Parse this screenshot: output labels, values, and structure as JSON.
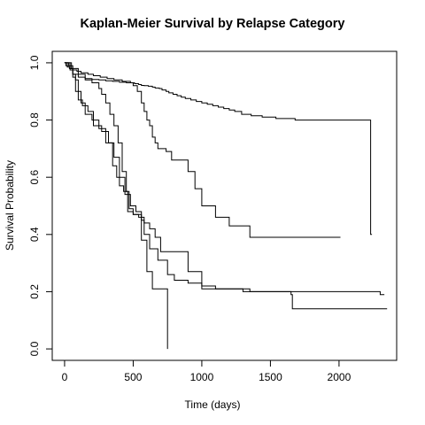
{
  "chart_data": {
    "type": "line",
    "step": true,
    "title": "Kaplan-Meier Survival by Relapse Category",
    "xlabel": "Time (days)",
    "ylabel": "Survival Probability",
    "xlim": [
      -90,
      2420
    ],
    "ylim": [
      -0.04,
      1.04
    ],
    "x_ticks": [
      0,
      500,
      1000,
      1500,
      2000
    ],
    "y_ticks": [
      0.0,
      0.2,
      0.4,
      0.6,
      0.8,
      1.0
    ],
    "x_tick_labels": [
      "0",
      "500",
      "1000",
      "1500",
      "2000"
    ],
    "y_tick_labels": [
      "0.0",
      "0.2",
      "0.4",
      "0.6",
      "0.8",
      "1.0"
    ],
    "grid": false,
    "legend": "none",
    "line_color": "#000000",
    "series": [
      {
        "x": [
          0,
          10,
          20,
          35,
          60,
          90,
          120,
          170,
          210,
          260,
          310,
          360,
          420,
          480,
          510,
          540,
          560,
          580,
          610,
          640,
          660,
          690,
          710,
          740,
          760,
          790,
          820,
          850,
          880,
          920,
          960,
          1000,
          1040,
          1080,
          1120,
          1160,
          1200,
          1240,
          1290,
          1360,
          1440,
          1540,
          1680,
          2230,
          2240
        ],
        "y": [
          1.0,
          0.99,
          0.985,
          0.98,
          0.975,
          0.97,
          0.965,
          0.96,
          0.955,
          0.95,
          0.945,
          0.94,
          0.935,
          0.93,
          0.927,
          0.924,
          0.921,
          0.92,
          0.918,
          0.915,
          0.912,
          0.91,
          0.905,
          0.9,
          0.895,
          0.89,
          0.885,
          0.88,
          0.875,
          0.87,
          0.865,
          0.86,
          0.855,
          0.85,
          0.845,
          0.84,
          0.835,
          0.83,
          0.82,
          0.815,
          0.81,
          0.805,
          0.8,
          0.4,
          0.4
        ]
      },
      {
        "x": [
          0,
          20,
          40,
          60,
          100,
          150,
          200,
          250,
          300,
          350,
          400,
          450,
          500,
          530,
          560,
          580,
          600,
          620,
          640,
          660,
          680,
          700,
          740,
          780,
          840,
          900,
          950,
          1000,
          1100,
          1200,
          1300,
          1350,
          1400,
          2000,
          2010
        ],
        "y": [
          1.0,
          0.99,
          0.975,
          0.96,
          0.95,
          0.945,
          0.942,
          0.94,
          0.937,
          0.935,
          0.932,
          0.93,
          0.92,
          0.9,
          0.86,
          0.83,
          0.8,
          0.78,
          0.74,
          0.72,
          0.7,
          0.7,
          0.69,
          0.66,
          0.66,
          0.62,
          0.56,
          0.5,
          0.46,
          0.43,
          0.43,
          0.39,
          0.39,
          0.39,
          0.39
        ]
      },
      {
        "x": [
          0,
          50,
          100,
          150,
          200,
          250,
          270,
          300,
          330,
          360,
          390,
          420,
          450,
          470,
          500,
          530,
          560,
          600,
          640,
          700,
          740,
          750
        ],
        "y": [
          1.0,
          0.98,
          0.96,
          0.94,
          0.93,
          0.91,
          0.89,
          0.86,
          0.82,
          0.78,
          0.72,
          0.62,
          0.55,
          0.49,
          0.47,
          0.47,
          0.38,
          0.27,
          0.21,
          0.21,
          0.21,
          0.0
        ]
      },
      {
        "x": [
          0,
          40,
          60,
          80,
          100,
          120,
          150,
          200,
          250,
          300,
          350,
          380,
          400,
          430,
          460,
          500,
          540,
          580,
          620,
          660,
          700,
          750,
          820,
          900,
          1000,
          1300,
          1500,
          1700,
          2000,
          2050,
          2300,
          2330
        ],
        "y": [
          1.0,
          0.98,
          0.96,
          0.94,
          0.9,
          0.86,
          0.82,
          0.8,
          0.77,
          0.72,
          0.64,
          0.6,
          0.57,
          0.55,
          0.48,
          0.47,
          0.46,
          0.44,
          0.42,
          0.39,
          0.34,
          0.34,
          0.34,
          0.27,
          0.21,
          0.2,
          0.2,
          0.2,
          0.2,
          0.2,
          0.19,
          0.19
        ]
      },
      {
        "x": [
          0,
          30,
          60,
          80,
          100,
          130,
          170,
          210,
          270,
          320,
          360,
          400,
          440,
          480,
          520,
          560,
          580,
          620,
          680,
          750,
          800,
          900,
          1000,
          1100,
          1300,
          1350,
          1500,
          1650,
          1660,
          2250,
          2350
        ],
        "y": [
          1.0,
          0.99,
          0.95,
          0.9,
          0.87,
          0.85,
          0.83,
          0.78,
          0.76,
          0.72,
          0.67,
          0.6,
          0.54,
          0.5,
          0.48,
          0.45,
          0.4,
          0.35,
          0.31,
          0.26,
          0.24,
          0.23,
          0.22,
          0.21,
          0.21,
          0.2,
          0.2,
          0.19,
          0.14,
          0.14,
          0.14
        ]
      }
    ]
  }
}
